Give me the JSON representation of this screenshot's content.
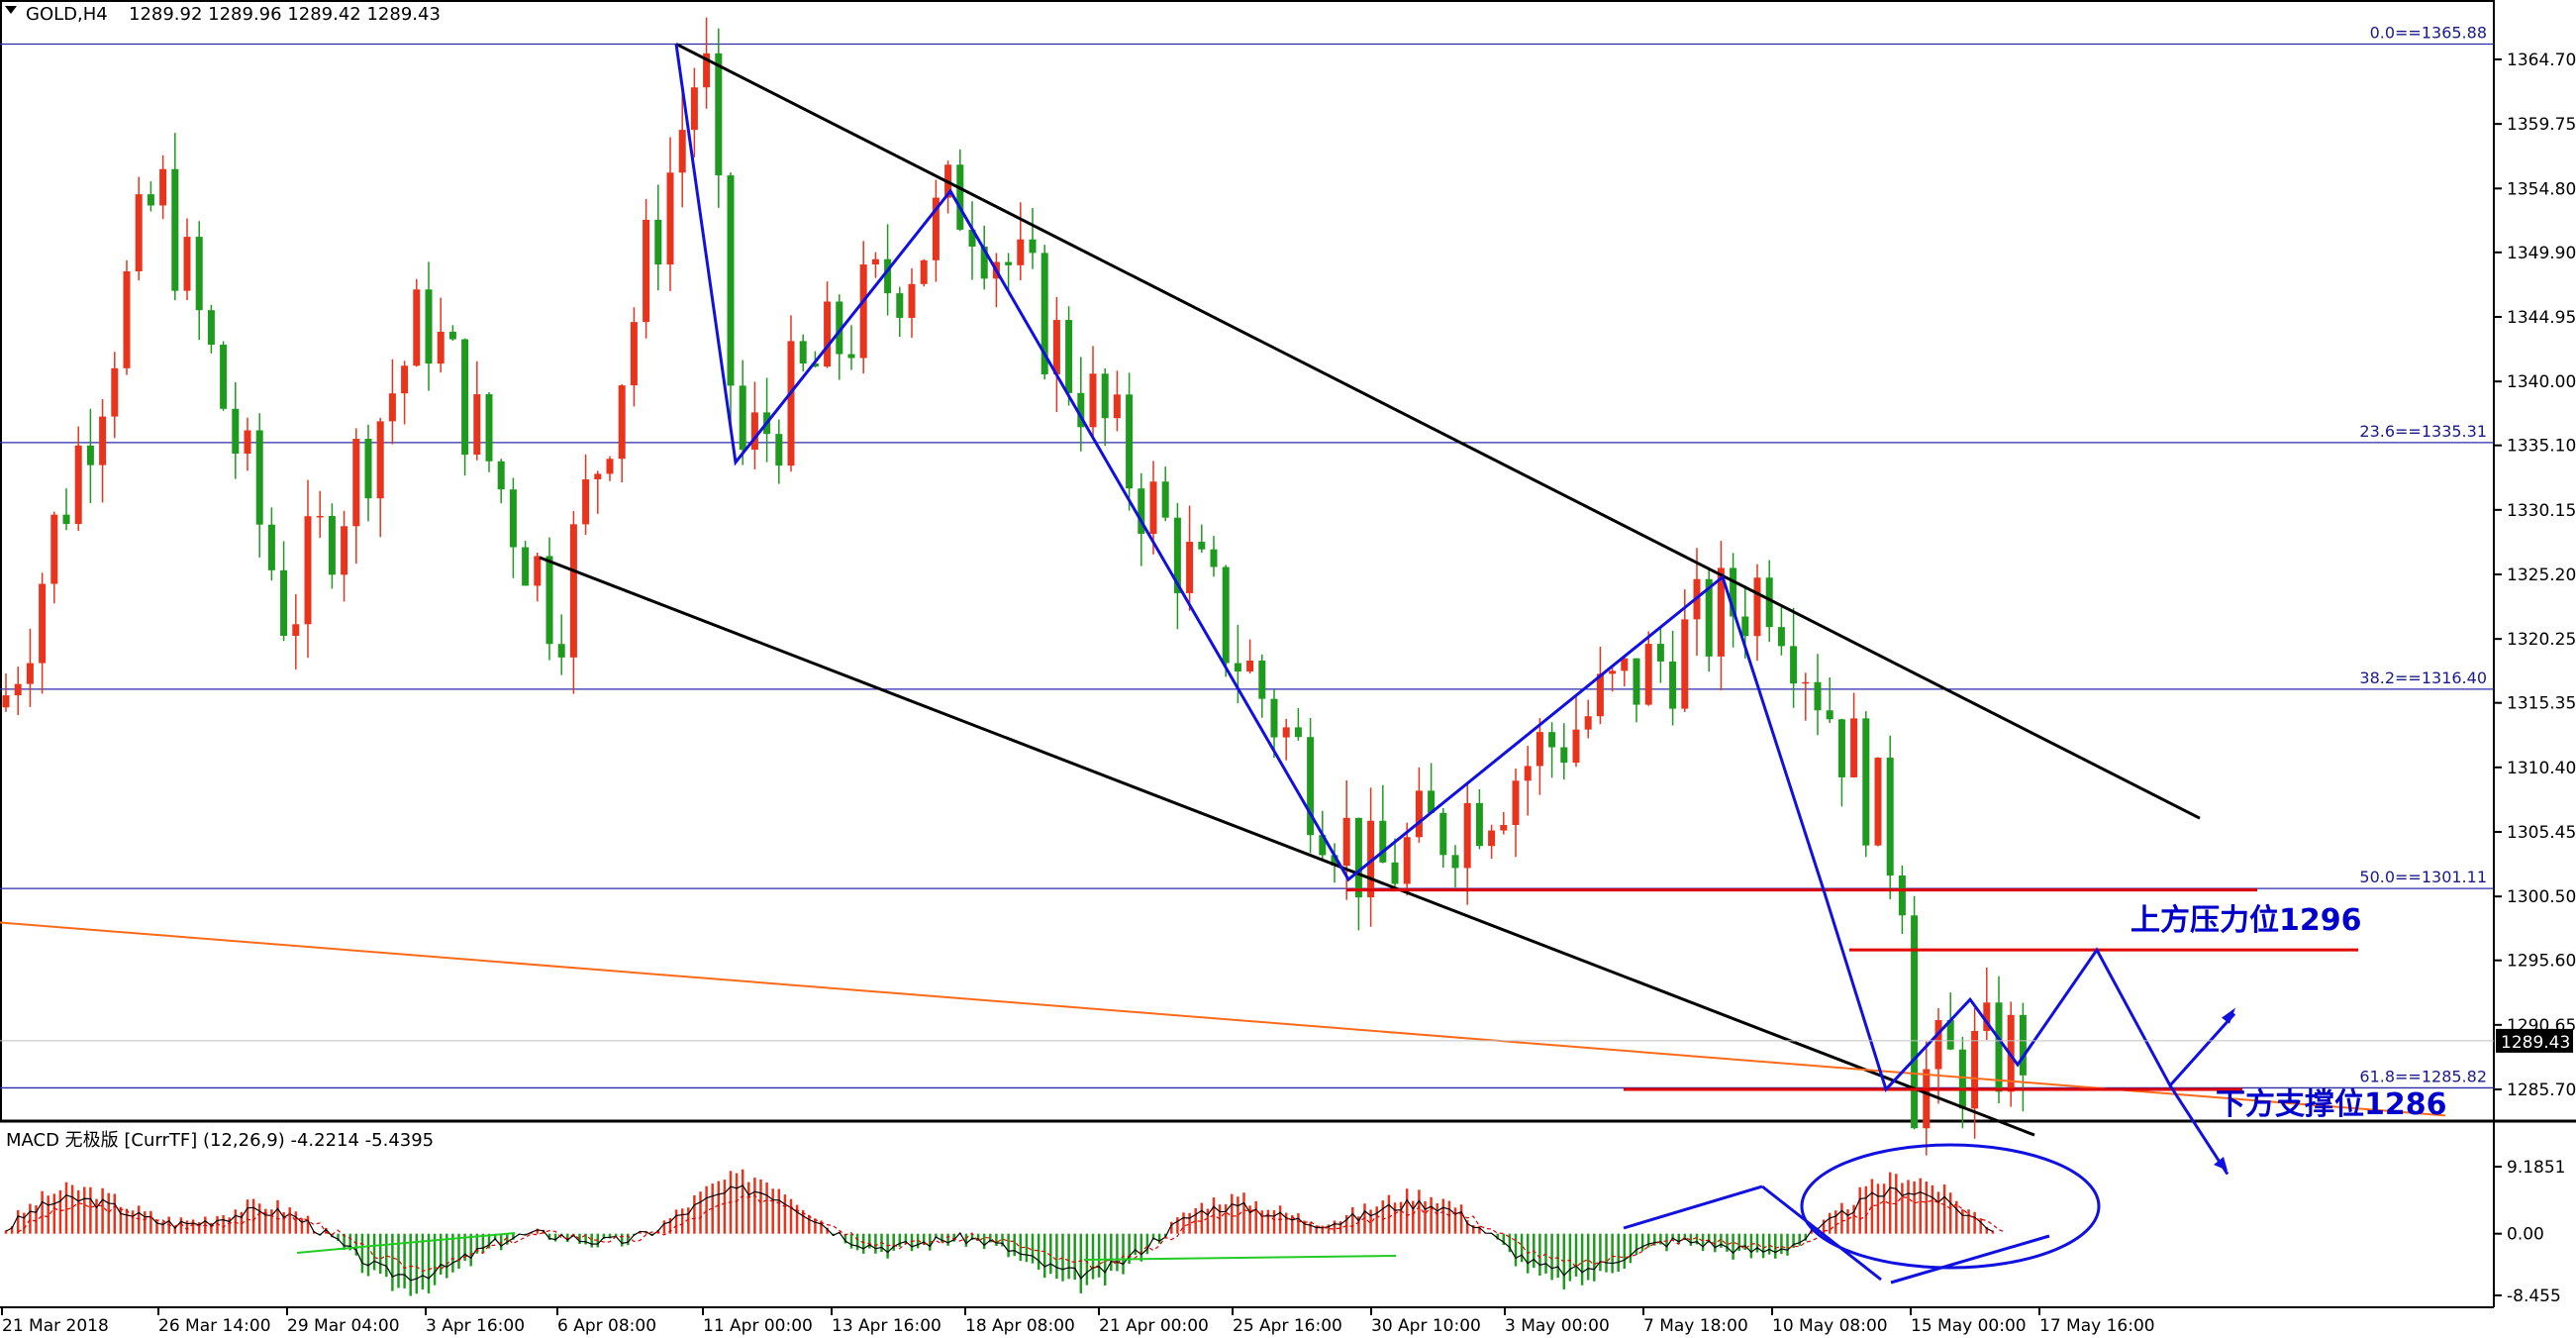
{
  "header": {
    "symbol": "GOLD,H4",
    "ohlc": "1289.92 1289.96 1289.42 1289.43"
  },
  "price_axis": {
    "ticks": [
      "1364.70",
      "1359.75",
      "1354.80",
      "1349.90",
      "1344.95",
      "1340.00",
      "1335.10",
      "1330.15",
      "1325.20",
      "1320.25",
      "1315.35",
      "1310.40",
      "1305.45",
      "1300.50",
      "1295.60",
      "1290.65",
      "1285.70"
    ],
    "current_price": "1289.43"
  },
  "fib_levels": [
    {
      "label": "0.0==1365.88",
      "value": 1365.88
    },
    {
      "label": "23.6==1335.31",
      "value": 1335.31
    },
    {
      "label": "38.2==1316.40",
      "value": 1316.4
    },
    {
      "label": "50.0==1301.11",
      "value": 1301.11
    },
    {
      "label": "61.8==1285.82",
      "value": 1285.82
    }
  ],
  "annotations": {
    "resistance": "上方压力位1296",
    "support": "下方支撑位1286"
  },
  "macd": {
    "label": "MACD 无极版 [CurrTF] (12,26,9) -4.2214 -5.4395",
    "ticks": [
      "9.1851",
      "0.00",
      "-8.455"
    ]
  },
  "time_axis": [
    "21 Mar 2018",
    "26 Mar 14:00",
    "29 Mar 04:00",
    "3 Apr 16:00",
    "6 Apr 08:00",
    "11 Apr 00:00",
    "13 Apr 16:00",
    "18 Apr 08:00",
    "21 Apr 00:00",
    "25 Apr 16:00",
    "30 Apr 10:00",
    "3 May 00:00",
    "7 May 18:00",
    "10 May 08:00",
    "15 May 00:00",
    "17 May 16:00"
  ],
  "colors": {
    "bull": "#e8341c",
    "bear": "#1e9a1e",
    "trend": "#000000",
    "zigzag": "#1010e0",
    "support_resistance": "#e00000",
    "orange_line": "#ff6a1a",
    "fib": "#2b2ba8"
  },
  "chart_data": {
    "type": "candlestick",
    "ylim": [
      1282.6,
      1368.0
    ],
    "key_points": [
      {
        "time": "21 Mar 2018",
        "price": 1315
      },
      {
        "time": "26 Mar 14:00",
        "price": 1355
      },
      {
        "time": "29 Mar 04:00",
        "price": 1322
      },
      {
        "time": "3 Apr 16:00",
        "price": 1345
      },
      {
        "time": "6 Apr 08:00",
        "price": 1322
      },
      {
        "time": "11 Apr 00:00",
        "price": 1365.88
      },
      {
        "time": "11 Apr 16:00",
        "price": 1333.8
      },
      {
        "time": "18 Apr 08:00",
        "price": 1354.6
      },
      {
        "time": "30 Apr 10:00",
        "price": 1301.8
      },
      {
        "time": "10 May 08:00",
        "price": 1325.0
      },
      {
        "time": "15 May 00:00",
        "price": 1301.0
      },
      {
        "time": "15 May 16:00",
        "price": 1285.7
      },
      {
        "time": "17 May 16:00",
        "price": 1289.43
      }
    ],
    "resistance": 1296,
    "support": 1286,
    "macd_ylim": [
      -8.455,
      9.1851
    ]
  }
}
